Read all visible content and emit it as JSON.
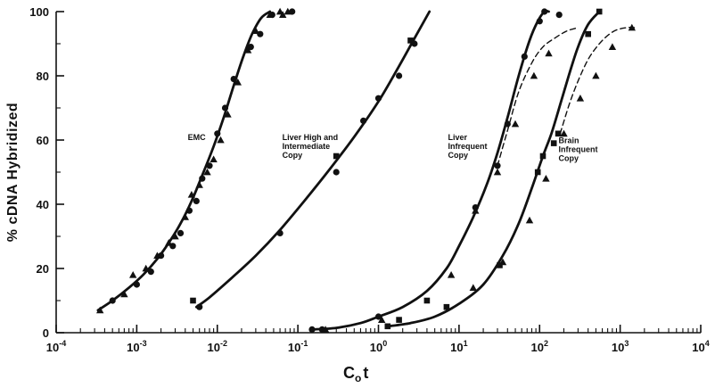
{
  "chart_data": {
    "type": "scatter",
    "title": "",
    "xlabel": "Cot",
    "xlabel_main": "C",
    "xlabel_sub": "o",
    "xlabel_tail": "t",
    "ylabel": "% cDNA  Hybridized",
    "x_scale": "log",
    "xlim": [
      0.0001,
      10000
    ],
    "ylim": [
      0,
      100
    ],
    "x_ticks": [
      {
        "value": 0.0001,
        "base": "10",
        "exp": "-4"
      },
      {
        "value": 0.001,
        "base": "10",
        "exp": "-3"
      },
      {
        "value": 0.01,
        "base": "10",
        "exp": "-2"
      },
      {
        "value": 0.1,
        "base": "10",
        "exp": "-1"
      },
      {
        "value": 1,
        "base": "10",
        "exp": "0"
      },
      {
        "value": 10,
        "base": "10",
        "exp": "1"
      },
      {
        "value": 100,
        "base": "10",
        "exp": "2"
      },
      {
        "value": 1000,
        "base": "10",
        "exp": "3"
      },
      {
        "value": 10000,
        "base": "10",
        "exp": "4"
      }
    ],
    "y_ticks": [
      0,
      20,
      40,
      60,
      80,
      100
    ],
    "grid": false,
    "legend": "none",
    "annotations": [
      {
        "lines": [
          "EMC"
        ],
        "x": 0.0043,
        "y": 60
      },
      {
        "lines": [
          "Liver High and",
          "Intermediate",
          "Copy"
        ],
        "x": 0.064,
        "y": 60
      },
      {
        "lines": [
          "Liver",
          "Infrequent",
          "Copy"
        ],
        "x": 7.3,
        "y": 60
      },
      {
        "lines": [
          "Brain",
          "Infrequent",
          "Copy"
        ],
        "x": 172,
        "y": 59
      }
    ],
    "series": [
      {
        "marker": "triangle",
        "style": "solid",
        "x": [
          0.00035,
          0.0007,
          0.0009,
          0.0013,
          0.0018,
          0.0025,
          0.003,
          0.004,
          0.0048,
          0.006,
          0.0075,
          0.009,
          0.011,
          0.0135,
          0.018,
          0.024,
          0.03,
          0.045,
          0.06,
          0.065,
          0.075
        ],
        "y": [
          7,
          12,
          18,
          20,
          24,
          28,
          30,
          36,
          43,
          46,
          50,
          54,
          60,
          68,
          78,
          88,
          94,
          99,
          100,
          99,
          100
        ]
      },
      {
        "marker": "circle",
        "style": "solid",
        "x": [
          0.0005,
          0.001,
          0.0015,
          0.002,
          0.0028,
          0.0035,
          0.0045,
          0.0055,
          0.0065,
          0.008,
          0.01,
          0.0125,
          0.016,
          0.026,
          0.034,
          0.048,
          0.085
        ],
        "y": [
          10,
          15,
          19,
          24,
          27,
          31,
          38,
          41,
          48,
          52,
          62,
          70,
          79,
          89,
          93,
          99,
          100
        ]
      },
      {
        "marker": "square",
        "style": "solid",
        "x": [
          0.005,
          0.3,
          2.5
        ],
        "y": [
          10,
          55,
          91
        ]
      },
      {
        "marker": "circle",
        "style": "solid",
        "x": [
          0.006,
          0.06,
          0.3,
          0.65,
          1.0,
          1.8,
          2.8
        ],
        "y": [
          8,
          31,
          50,
          66,
          73,
          80,
          90
        ]
      },
      {
        "marker": "circle",
        "style": "solid",
        "x": [
          0.15,
          0.2,
          1.0,
          16,
          30,
          40,
          65,
          100,
          115,
          175
        ],
        "y": [
          1,
          1,
          5,
          39,
          52,
          65,
          86,
          97,
          100,
          99
        ]
      },
      {
        "marker": "triangle",
        "style": "dashed",
        "x": [
          0.22,
          1.1,
          8,
          16,
          30,
          50,
          85,
          130
        ],
        "y": [
          1,
          4,
          18,
          38,
          50,
          65,
          80,
          87
        ]
      },
      {
        "marker": "square",
        "style": "solid",
        "x": [
          1.3,
          1.8,
          4,
          7,
          32,
          95,
          110,
          150,
          170,
          400,
          550
        ],
        "y": [
          2,
          4,
          10,
          8,
          21,
          50,
          55,
          59,
          62,
          93,
          100
        ]
      },
      {
        "marker": "triangle",
        "style": "dashed",
        "x": [
          15,
          35,
          75,
          120,
          200,
          320,
          500,
          800,
          1400
        ],
        "y": [
          14,
          22,
          35,
          48,
          62,
          73,
          80,
          89,
          95
        ]
      }
    ],
    "curves": [
      {
        "style": "solid",
        "x": [
          0.00033,
          0.0005,
          0.0008,
          0.0012,
          0.0018,
          0.0025,
          0.0035,
          0.0048,
          0.0065,
          0.009,
          0.012,
          0.016,
          0.021,
          0.027,
          0.035,
          0.045
        ],
        "y": [
          7,
          10,
          14,
          18,
          23,
          28,
          34,
          41,
          49,
          58,
          67,
          77,
          86,
          93,
          98,
          100
        ]
      },
      {
        "style": "solid",
        "x": [
          0.0055,
          0.008,
          0.015,
          0.03,
          0.06,
          0.12,
          0.25,
          0.5,
          1.0,
          1.8,
          3.0,
          4.3
        ],
        "y": [
          8,
          11,
          17,
          24,
          32,
          41,
          51,
          61,
          72,
          83,
          93,
          100
        ]
      },
      {
        "style": "solid",
        "x": [
          0.15,
          0.3,
          0.6,
          1.0,
          2.0,
          4,
          7,
          10,
          15,
          22,
          30,
          40,
          55,
          75,
          95,
          115,
          130
        ],
        "y": [
          1,
          1.5,
          3,
          5,
          8,
          13,
          20,
          27,
          36,
          46,
          56,
          67,
          80,
          91,
          97,
          100,
          100
        ]
      },
      {
        "style": "dashed",
        "x": [
          30,
          40,
          55,
          80,
          110,
          160,
          220,
          300
        ],
        "y": [
          52,
          63,
          75,
          84,
          89,
          92,
          94,
          95
        ]
      },
      {
        "style": "solid",
        "x": [
          1.3,
          2.5,
          5,
          10,
          20,
          35,
          55,
          80,
          110,
          140,
          180,
          230,
          300,
          400,
          550
        ],
        "y": [
          2,
          3,
          5,
          9,
          15,
          24,
          34,
          45,
          55,
          62,
          71,
          80,
          89,
          96,
          100
        ]
      },
      {
        "style": "dashed",
        "x": [
          180,
          240,
          320,
          420,
          600,
          850,
          1200,
          1500
        ],
        "y": [
          62,
          72,
          80,
          86,
          91,
          94,
          95,
          95
        ]
      }
    ]
  }
}
